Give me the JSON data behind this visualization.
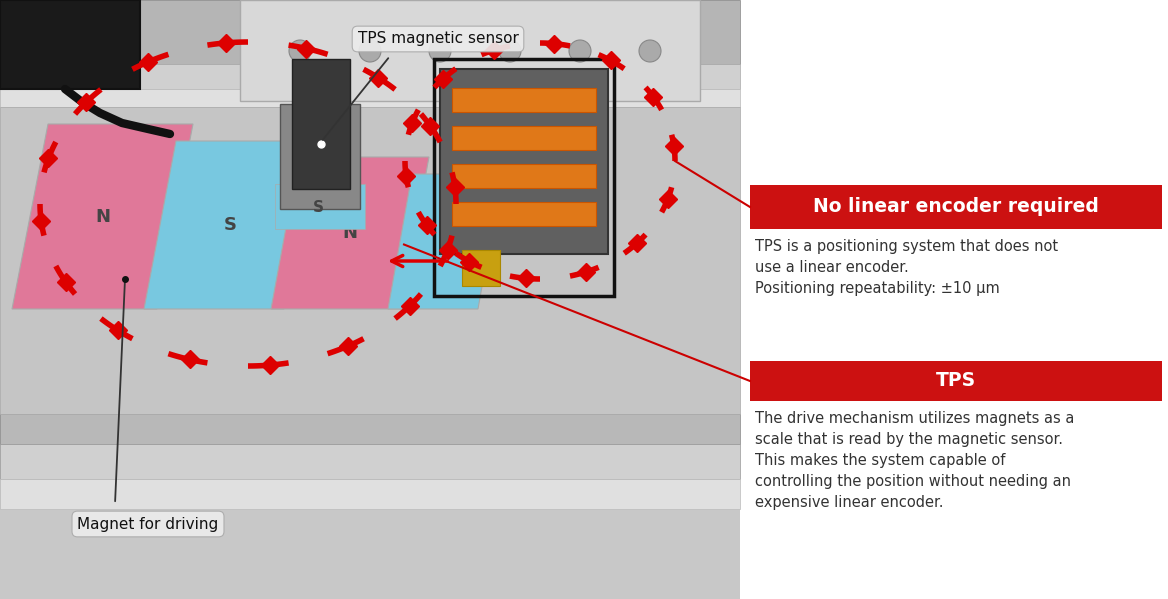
{
  "bg_color": "#ffffff",
  "annotation1_box_color": "#cc1111",
  "annotation1_title": "No linear encoder required",
  "annotation1_title_color": "#ffffff",
  "annotation1_body": "TPS is a positioning system that does not\nuse a linear encoder.\nPositioning repeatability: ±10 μm",
  "annotation1_body_color": "#333333",
  "annotation2_box_color": "#cc1111",
  "annotation2_title": "TPS",
  "annotation2_title_color": "#ffffff",
  "annotation2_body": "The drive mechanism utilizes magnets as a\nscale that is read by the magnetic sensor.\nThis makes the system capable of\ncontrolling the position without needing an\nexpensive linear encoder.",
  "annotation2_body_color": "#333333",
  "label_tps_sensor": "TPS magnetic sensor",
  "label_tps_sensor_color": "#111111",
  "label_magnet": "Magnet for driving",
  "label_magnet_color": "#111111",
  "red_circle_color": "#dd0000",
  "red_line_color": "#cc0000",
  "magnet_pink": "#e07899",
  "magnet_cyan": "#78c8e0",
  "rail_light": "#d8d8d8",
  "rail_mid": "#c0c0c0",
  "rail_dark": "#909090",
  "sensor_color": "#383838",
  "coil_color": "#505050",
  "orange_wire_color": "#e07818",
  "gold_color": "#c8a010",
  "black_box_color": "#1a1a1a",
  "photo_bg": "#c8c8c8"
}
